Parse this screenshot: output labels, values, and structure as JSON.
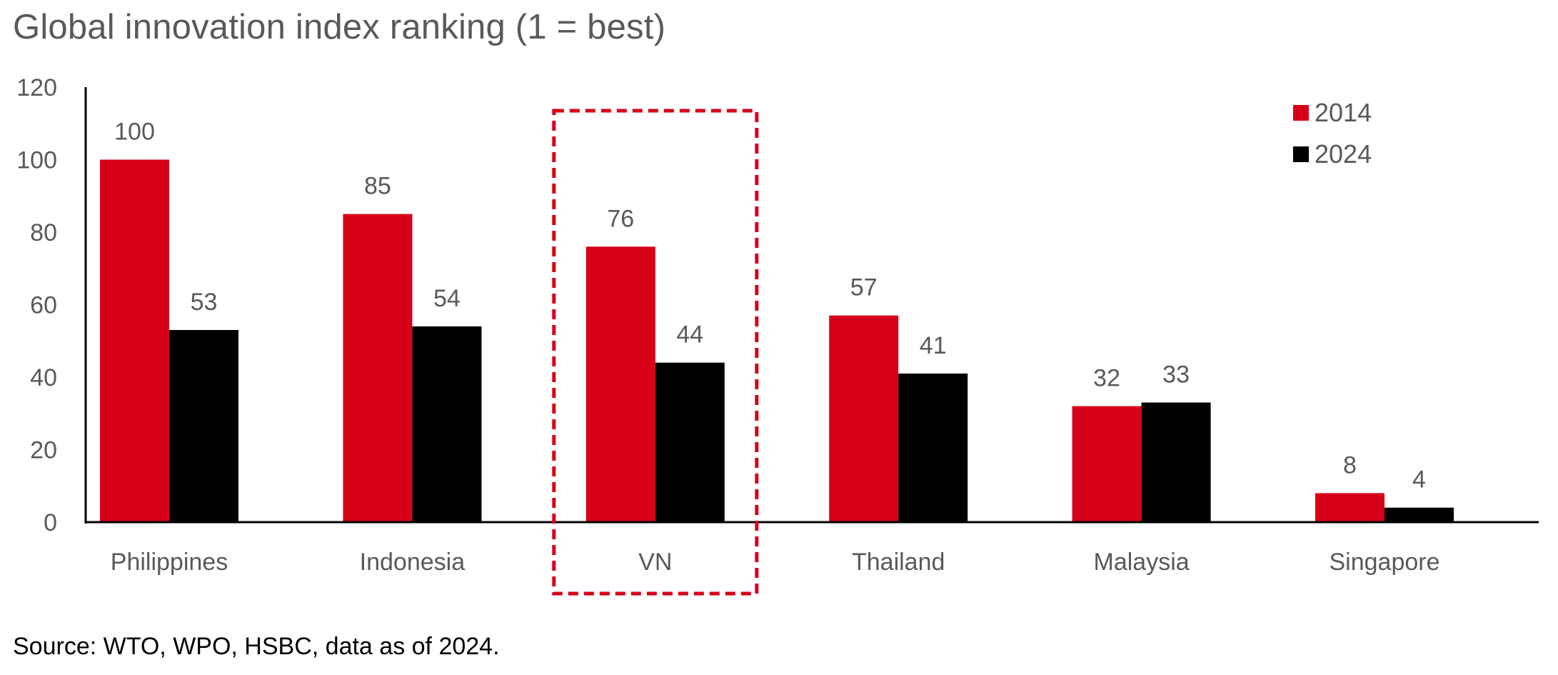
{
  "title": "Global innovation index ranking (1 = best)",
  "source": "Source: WTO, WPO, HSBC, data as of 2024.",
  "colors": {
    "2014": "#d70019",
    "2024": "#000000",
    "highlight": "#d70019",
    "text": "#595959"
  },
  "chart_data": {
    "type": "bar",
    "categories": [
      "Philippines",
      "Indonesia",
      "VN",
      "Thailand",
      "Malaysia",
      "Singapore"
    ],
    "series": [
      {
        "name": "2014",
        "values": [
          100,
          85,
          76,
          57,
          32,
          8
        ]
      },
      {
        "name": "2024",
        "values": [
          53,
          54,
          44,
          41,
          33,
          4
        ]
      }
    ],
    "ylim": [
      0,
      120
    ],
    "yticks": [
      0,
      20,
      40,
      60,
      80,
      100,
      120
    ],
    "data_labels": true,
    "legend": "top-right",
    "grid": false,
    "highlight": {
      "category": "VN",
      "style": "dashed red box"
    }
  }
}
